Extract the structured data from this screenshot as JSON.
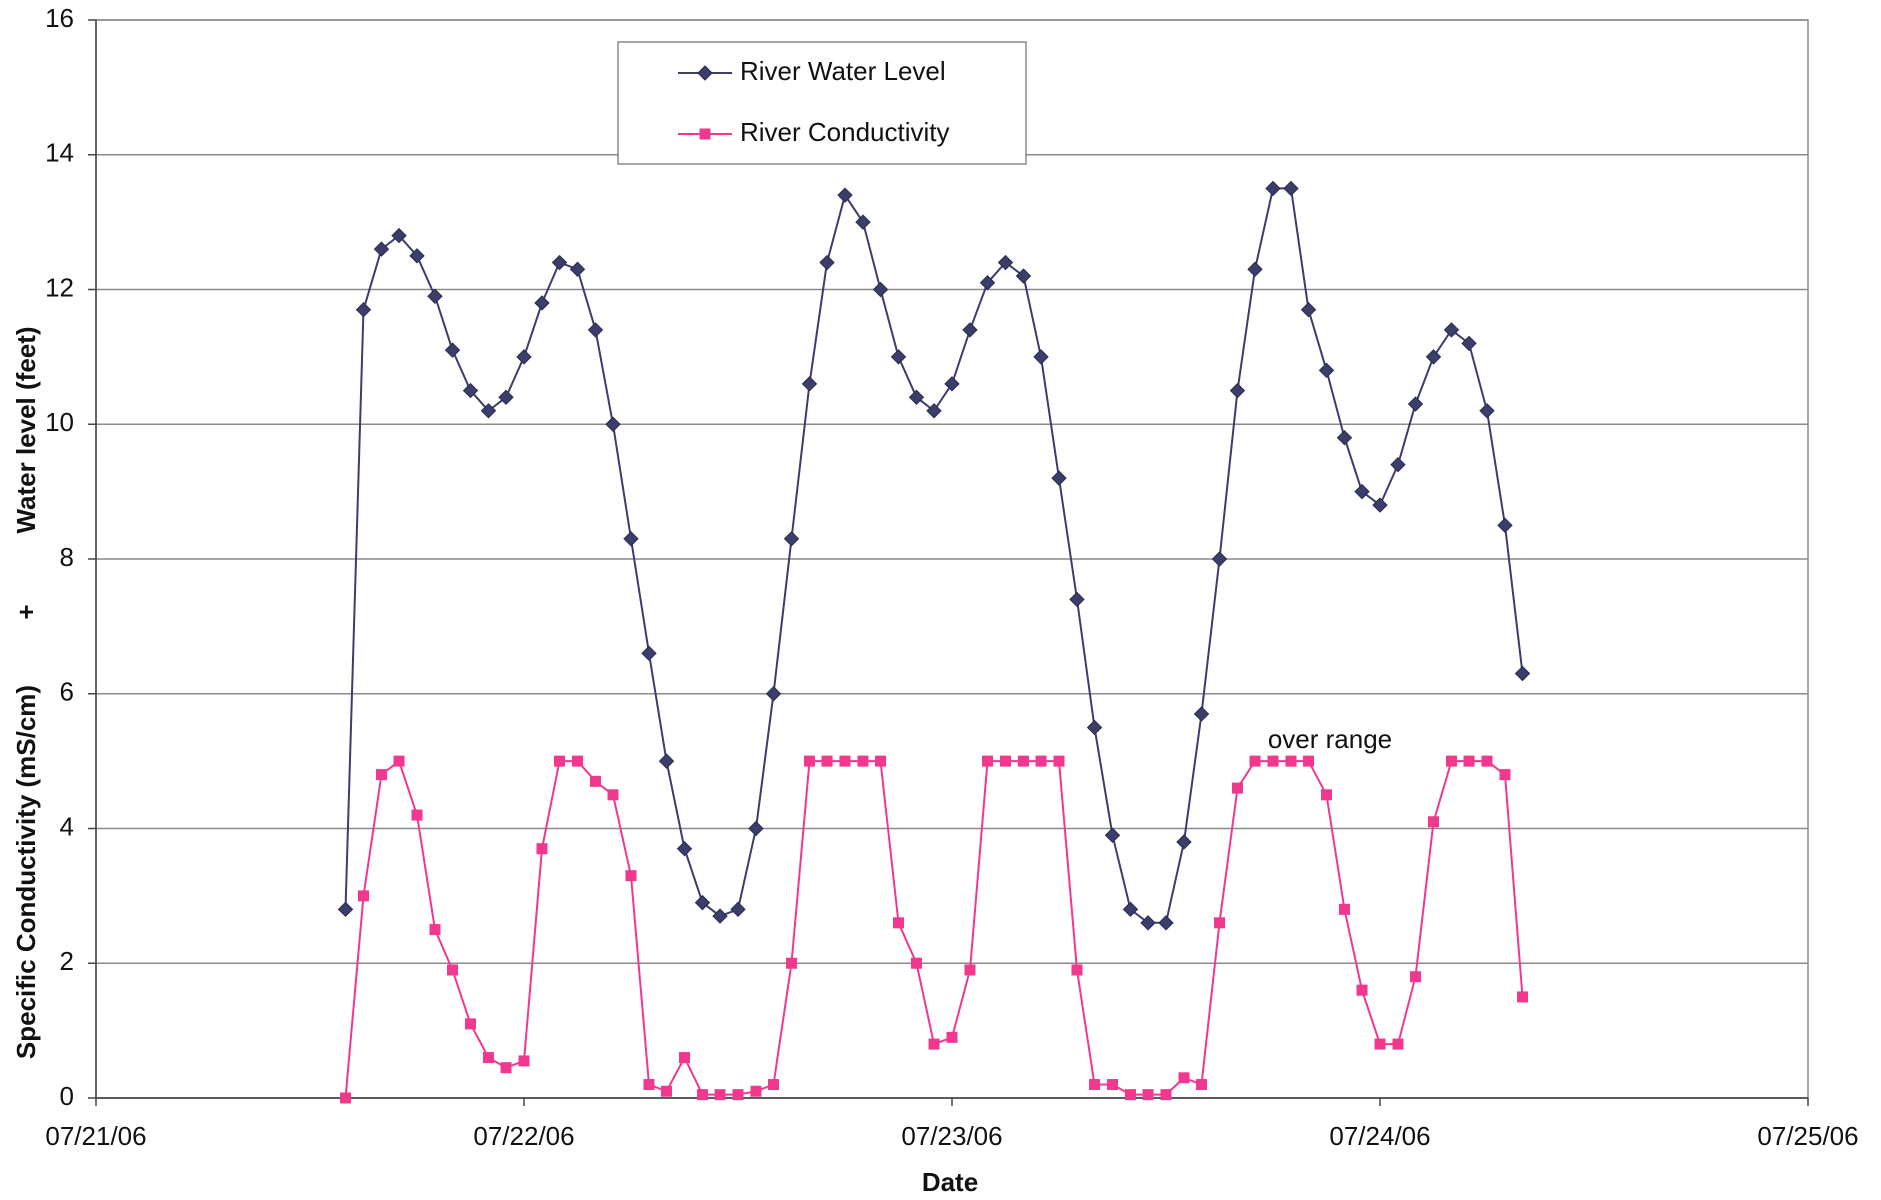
{
  "chart_data": {
    "type": "line",
    "xlabel": "Date",
    "ylabel": [
      "Water level (feet)",
      "+",
      "Specific Conductivity (mS/cm)"
    ],
    "annotations": [
      "over range"
    ],
    "xlim": [
      0,
      4
    ],
    "xticks": [
      {
        "value": 0,
        "label": "07/21/06"
      },
      {
        "value": 1,
        "label": "07/22/06"
      },
      {
        "value": 2,
        "label": "07/23/06"
      },
      {
        "value": 3,
        "label": "07/24/06"
      },
      {
        "value": 4,
        "label": "07/25/06"
      }
    ],
    "ylim": [
      0,
      16
    ],
    "yticks": [
      0,
      2,
      4,
      6,
      8,
      10,
      12,
      14,
      16
    ],
    "grid": true,
    "legend": "upper center",
    "x": [
      0.583,
      0.625,
      0.667,
      0.708,
      0.75,
      0.792,
      0.833,
      0.875,
      0.917,
      0.958,
      1.0,
      1.042,
      1.083,
      1.125,
      1.167,
      1.208,
      1.25,
      1.292,
      1.333,
      1.375,
      1.417,
      1.458,
      1.5,
      1.542,
      1.583,
      1.625,
      1.667,
      1.708,
      1.75,
      1.792,
      1.833,
      1.875,
      1.917,
      1.958,
      2.0,
      2.042,
      2.083,
      2.125,
      2.167,
      2.208,
      2.25,
      2.292,
      2.333,
      2.375,
      2.417,
      2.458,
      2.5,
      2.542,
      2.583,
      2.625,
      2.667,
      2.708,
      2.75,
      2.792,
      2.833,
      2.875,
      2.917,
      2.958,
      3.0,
      3.042,
      3.083,
      3.125,
      3.167,
      3.208,
      3.25,
      3.292,
      3.333
    ],
    "series": [
      {
        "name": "River Water Level",
        "color": "#3b3d6b",
        "marker": "diamond",
        "values": [
          2.8,
          11.7,
          12.6,
          12.8,
          12.5,
          11.9,
          11.1,
          10.5,
          10.2,
          10.4,
          11.0,
          11.8,
          12.4,
          12.3,
          11.4,
          10.0,
          8.3,
          6.6,
          5.0,
          3.7,
          2.9,
          2.7,
          2.8,
          4.0,
          6.0,
          8.3,
          10.6,
          12.4,
          13.4,
          13.0,
          12.0,
          11.0,
          10.4,
          10.2,
          10.6,
          11.4,
          12.1,
          12.4,
          12.2,
          11.0,
          9.2,
          7.4,
          5.5,
          3.9,
          2.8,
          2.6,
          2.6,
          3.8,
          5.7,
          8.0,
          10.5,
          12.3,
          13.5,
          13.5,
          11.7,
          10.8,
          9.8,
          9.0,
          8.8,
          9.4,
          10.3,
          11.0,
          11.4,
          11.2,
          10.2,
          8.5,
          6.3
        ]
      },
      {
        "name": "River Conductivity",
        "color": "#f0388f",
        "marker": "square",
        "values": [
          0.0,
          3.0,
          4.8,
          5.0,
          4.2,
          2.5,
          1.9,
          1.1,
          0.6,
          0.45,
          0.55,
          3.7,
          5.0,
          5.0,
          4.7,
          4.5,
          3.3,
          0.2,
          0.1,
          0.6,
          0.05,
          0.05,
          0.05,
          0.1,
          0.2,
          2.0,
          5.0,
          5.0,
          5.0,
          5.0,
          5.0,
          2.6,
          2.0,
          0.8,
          0.9,
          1.9,
          5.0,
          5.0,
          5.0,
          5.0,
          5.0,
          1.9,
          0.2,
          0.2,
          0.05,
          0.05,
          0.05,
          0.3,
          0.2,
          2.6,
          4.6,
          5.0,
          5.0,
          5.0,
          5.0,
          4.5,
          2.8,
          1.6,
          0.8,
          0.8,
          1.8,
          4.1,
          5.0,
          5.0,
          5.0,
          4.8,
          1.5
        ]
      }
    ]
  }
}
